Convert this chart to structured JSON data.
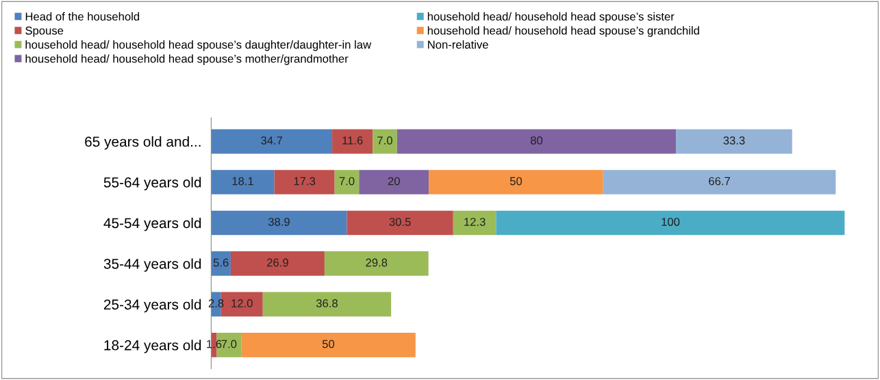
{
  "chart_data": {
    "type": "bar",
    "orientation": "horizontal",
    "stacked": true,
    "legend": "top",
    "grid": false,
    "categories": [
      "65 years old and...",
      "55-64 years old",
      "45-54 years old",
      "35-44 years old",
      "25-34 years old",
      "18-24 years old"
    ],
    "series": [
      {
        "name": "Head of the household",
        "color": "#4f81bd",
        "values": [
          34.7,
          18.1,
          38.9,
          5.6,
          2.8,
          null
        ],
        "value_labels": [
          "34.7",
          "18.1",
          "38.9",
          "5.6",
          "2.8",
          null
        ]
      },
      {
        "name": "Spouse",
        "color": "#c0504d",
        "values": [
          11.6,
          17.3,
          30.5,
          26.9,
          12.0,
          1.6
        ],
        "value_labels": [
          "11.6",
          "17.3",
          "30.5",
          "26.9",
          "12.0",
          "1.6"
        ]
      },
      {
        "name": "household head/ household head spouse’s daughter/daughter-in law",
        "color": "#9bbb59",
        "values": [
          7.0,
          7.0,
          12.3,
          29.8,
          36.8,
          7.0
        ],
        "value_labels": [
          "7.0",
          "7.0",
          "12.3",
          "29.8",
          "36.8",
          "7.0"
        ]
      },
      {
        "name": "household head/ household head spouse’s mother/grandmother",
        "color": "#8064a2",
        "values": [
          80,
          20,
          null,
          null,
          null,
          null
        ],
        "value_labels": [
          "80",
          "20",
          null,
          null,
          null,
          null
        ]
      },
      {
        "name": "household head/ household head spouse’s sister",
        "color": "#4bacc6",
        "values": [
          null,
          null,
          100,
          null,
          null,
          null
        ],
        "value_labels": [
          null,
          null,
          "100",
          null,
          null,
          null
        ]
      },
      {
        "name": "household head/ household head spouse’s grandchild",
        "color": "#f79646",
        "values": [
          null,
          50,
          null,
          null,
          null,
          50
        ],
        "value_labels": [
          null,
          "50",
          null,
          null,
          null,
          "50"
        ]
      },
      {
        "name": "Non-relative",
        "color": "#95b3d7",
        "values": [
          33.3,
          66.7,
          null,
          null,
          null,
          null
        ],
        "value_labels": [
          "33.3",
          "66.7",
          null,
          null,
          null,
          null
        ]
      }
    ]
  }
}
